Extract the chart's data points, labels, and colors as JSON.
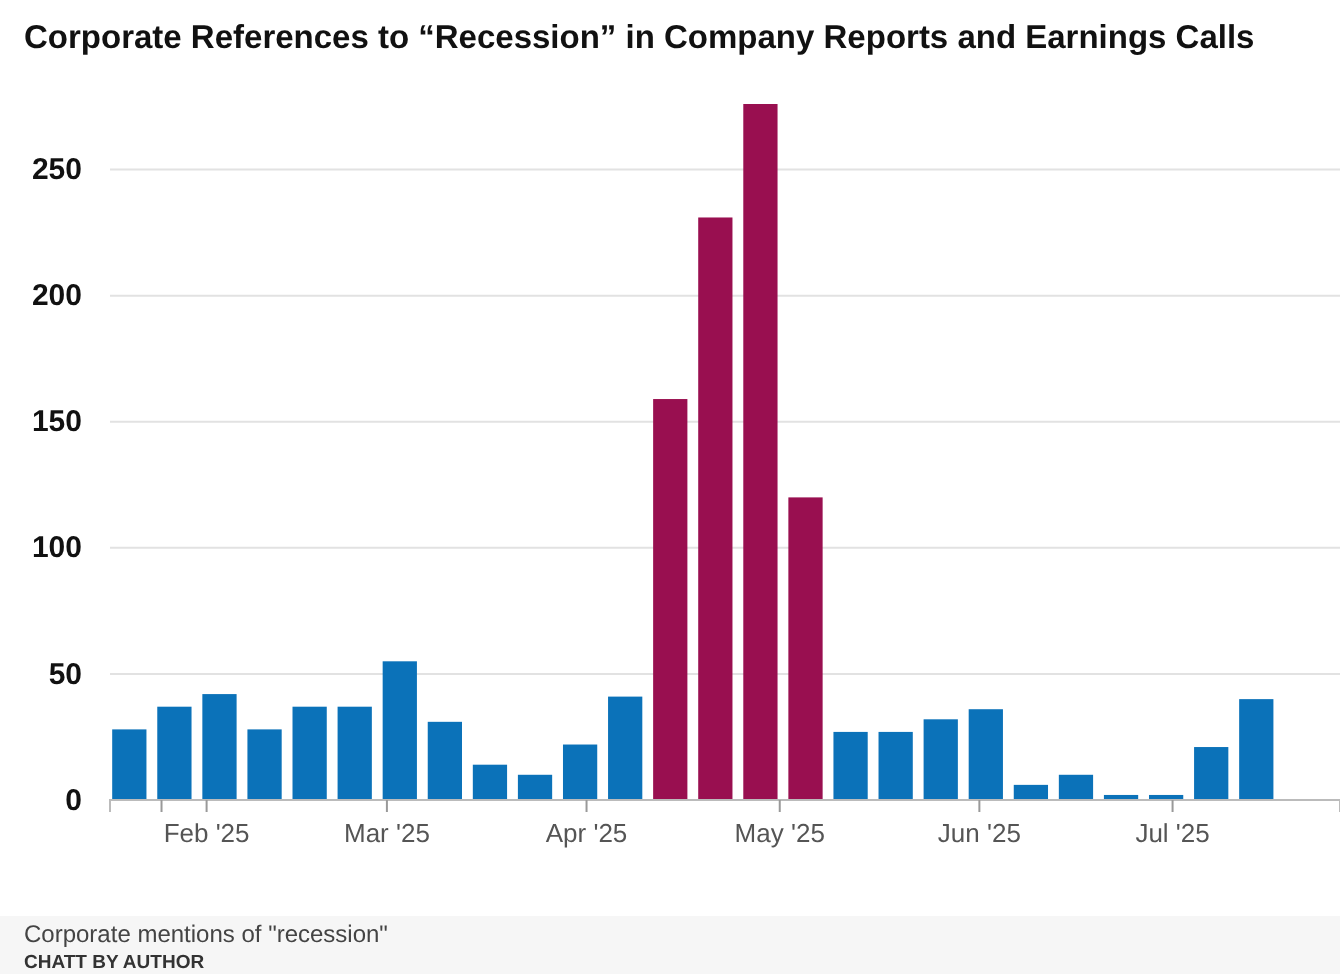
{
  "chart_data": {
    "type": "bar",
    "title": "Corporate References to “Recession” in Company Reports and Earnings Calls",
    "x": [
      "2025-01-20",
      "2025-01-27",
      "2025-02-03",
      "2025-02-10",
      "2025-02-17",
      "2025-02-24",
      "2025-03-03",
      "2025-03-10",
      "2025-03-17",
      "2025-03-24",
      "2025-03-31",
      "2025-04-07",
      "2025-04-14",
      "2025-04-21",
      "2025-04-28",
      "2025-05-05",
      "2025-05-12",
      "2025-05-19",
      "2025-05-26",
      "2025-06-02",
      "2025-06-09",
      "2025-06-16",
      "2025-06-23",
      "2025-06-30",
      "2025-07-07",
      "2025-07-14"
    ],
    "values": [
      28,
      37,
      42,
      28,
      37,
      37,
      55,
      31,
      14,
      10,
      22,
      41,
      159,
      231,
      276,
      120,
      27,
      27,
      32,
      36,
      6,
      10,
      2,
      2,
      21,
      40
    ],
    "colors": [
      "#0b72b9",
      "#0b72b9",
      "#0b72b9",
      "#0b72b9",
      "#0b72b9",
      "#0b72b9",
      "#0b72b9",
      "#0b72b9",
      "#0b72b9",
      "#0b72b9",
      "#0b72b9",
      "#0b72b9",
      "#990f50",
      "#990f50",
      "#990f50",
      "#990f50",
      "#0b72b9",
      "#0b72b9",
      "#0b72b9",
      "#0b72b9",
      "#0b72b9",
      "#0b72b9",
      "#0b72b9",
      "#0b72b9",
      "#0b72b9",
      "#0b72b9"
    ],
    "xlim": [
      "2025-01-17",
      "2025-07-27"
    ],
    "xticks": [
      {
        "value": "2025-01-25",
        "label": null
      },
      {
        "value": "2025-02-01",
        "label": "Feb '25"
      },
      {
        "value": "2025-03-01",
        "label": "Mar '25"
      },
      {
        "value": "2025-04-01",
        "label": "Apr '25"
      },
      {
        "value": "2025-05-01",
        "label": "May '25"
      },
      {
        "value": "2025-06-01",
        "label": "Jun '25"
      },
      {
        "value": "2025-07-01",
        "label": "Jul '25"
      }
    ],
    "ylim": [
      0,
      276
    ],
    "yticks": [
      0,
      50,
      100,
      150,
      200,
      250
    ],
    "grid": "y",
    "annotations": [
      "Corporate mentions of \"recession\"",
      "CHATT BY AUTHOR"
    ]
  }
}
